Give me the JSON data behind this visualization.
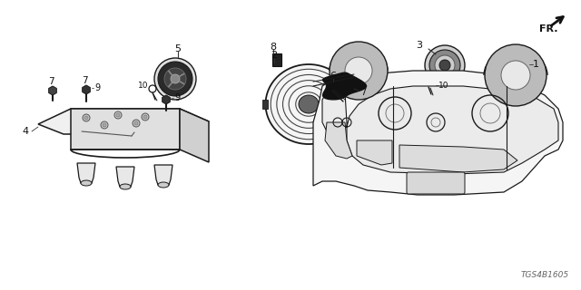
{
  "background_color": "#ffffff",
  "dark_color": "#1a1a1a",
  "mid_color": "#555555",
  "light_color": "#aaaaaa",
  "watermark": "TGS4B1605",
  "figsize": [
    6.4,
    3.2
  ],
  "dpi": 100
}
